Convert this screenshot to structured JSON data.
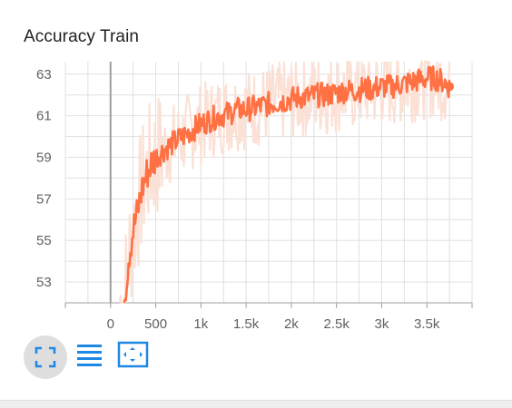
{
  "card": {
    "title": "Accuracy Train"
  },
  "toolbar": {
    "fit_icon": "fullscreen-icon",
    "list_icon": "list-icon",
    "zoom_icon": "fit-domain-icon",
    "accent": "#1e88e5"
  },
  "colors": {
    "raw_series": "#fbe0d5",
    "smoothed_series": "#ff7043",
    "grid": "#e0e0e0",
    "axis": "#9e9e9e"
  },
  "chart_data": {
    "type": "line",
    "title": "Accuracy Train",
    "xlabel": "",
    "ylabel": "",
    "xlim": [
      -500,
      4000
    ],
    "ylim": [
      52.0,
      63.6
    ],
    "grid": true,
    "x_ticks": [
      0,
      500,
      1000,
      1500,
      2000,
      2500,
      3000,
      3500
    ],
    "x_tick_labels": [
      "0",
      "500",
      "1k",
      "1.5k",
      "2k",
      "2.5k",
      "3k",
      "3.5k"
    ],
    "y_ticks": [
      53,
      55,
      57,
      59,
      61,
      63
    ],
    "y_tick_labels": [
      "53",
      "55",
      "57",
      "59",
      "61",
      "63"
    ],
    "series": [
      {
        "role": "smoothed",
        "x": [
          150,
          200,
          250,
          300,
          350,
          400,
          450,
          500,
          600,
          700,
          800,
          900,
          1000,
          1100,
          1200,
          1300,
          1400,
          1500,
          1600,
          1700,
          1800,
          1900,
          2000,
          2100,
          2200,
          2300,
          2400,
          2500,
          2600,
          2700,
          2800,
          2900,
          3000,
          3100,
          3200,
          3300,
          3400,
          3500,
          3600,
          3700,
          3750
        ],
        "values": [
          52.0,
          54.2,
          55.5,
          56.4,
          57.5,
          58.2,
          58.7,
          59.0,
          59.4,
          59.7,
          60.0,
          60.3,
          60.6,
          60.8,
          61.0,
          61.1,
          61.3,
          61.3,
          61.4,
          61.5,
          61.6,
          61.7,
          61.8,
          61.9,
          61.9,
          62.0,
          62.0,
          62.1,
          62.2,
          62.2,
          62.3,
          62.3,
          62.4,
          62.4,
          62.5,
          62.6,
          62.7,
          62.8,
          62.8,
          62.6,
          62.4
        ]
      },
      {
        "role": "raw",
        "x": [
          100,
          3750
        ],
        "band_low": [
          52.0,
          58.0
        ],
        "band_high": [
          59.0,
          63.6
        ]
      }
    ],
    "annotations": [
      "last point marker at x≈3750, y≈62.4"
    ]
  }
}
